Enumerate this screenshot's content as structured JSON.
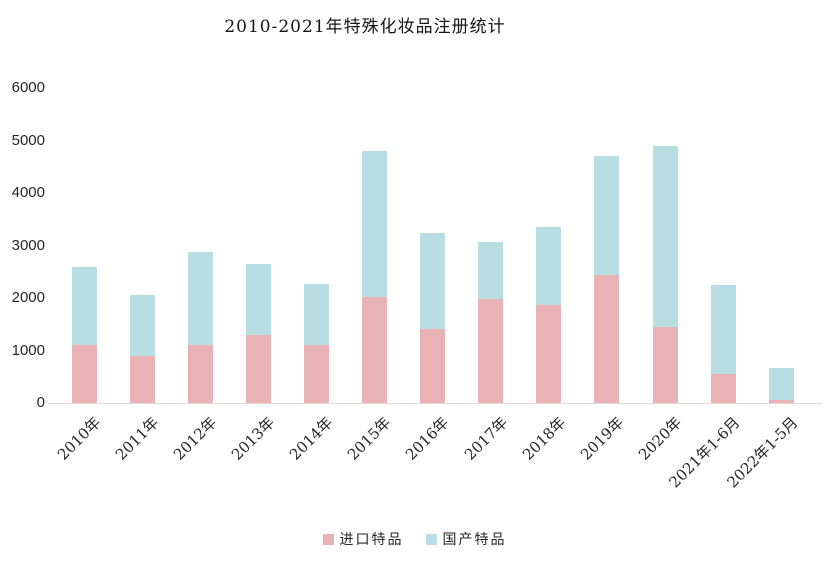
{
  "title": "2010-2021年特殊化妆品注册统计",
  "colors": {
    "imported": "#e9b3b5",
    "domestic": "#b8dee3",
    "axis_line": "#e4d8d8",
    "text": "#262626"
  },
  "legend": {
    "items": [
      {
        "key": "imported",
        "label": "进口特品",
        "color": "#e9b3b5"
      },
      {
        "key": "domestic",
        "label": "国产特品",
        "color": "#b8dee3"
      }
    ]
  },
  "chart_data": {
    "type": "bar",
    "stacked": true,
    "title": "2010-2021年特殊化妆品注册统计",
    "categories": [
      "2010年",
      "2011年",
      "2012年",
      "2013年",
      "2014年",
      "2015年",
      "2016年",
      "2017年",
      "2018年",
      "2019年",
      "2020年",
      "2021年1-6月",
      "2022年1-5月"
    ],
    "series": [
      {
        "name": "进口特品",
        "key": "imported",
        "color": "#e9b3b5",
        "values": [
          1100,
          900,
          1100,
          1300,
          1100,
          2010,
          1410,
          1990,
          1870,
          2430,
          1450,
          550,
          60
        ]
      },
      {
        "name": "国产特品",
        "key": "domestic",
        "color": "#b8dee3",
        "values": [
          1500,
          1150,
          1780,
          1350,
          1170,
          2790,
          1830,
          1080,
          1490,
          2270,
          3450,
          1700,
          610
        ]
      }
    ],
    "totals": [
      2600,
      2050,
      2880,
      2650,
      2270,
      4800,
      3240,
      3070,
      3360,
      4700,
      4900,
      2250,
      670
    ],
    "xlabel": "",
    "ylabel": "",
    "ylim": [
      0,
      6000
    ],
    "y_ticks": [
      0,
      1000,
      2000,
      3000,
      4000,
      5000,
      6000
    ],
    "grid": false,
    "legend_position": "bottom"
  }
}
